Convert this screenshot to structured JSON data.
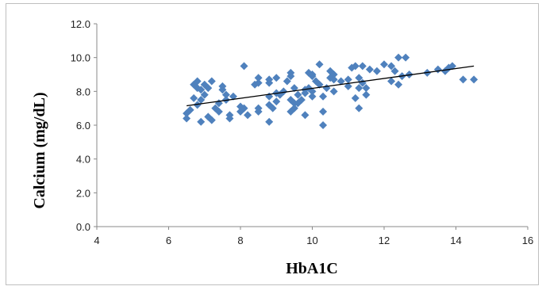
{
  "chart_data": {
    "type": "scatter",
    "title": "",
    "xlabel": "HbA1C",
    "ylabel": "Calcium (mg/dL)",
    "xlim": [
      4,
      16
    ],
    "ylim": [
      0,
      12
    ],
    "x_ticks": [
      "4",
      "6",
      "8",
      "10",
      "12",
      "14",
      "16"
    ],
    "y_ticks": [
      "0.0",
      "2.0",
      "4.0",
      "6.0",
      "8.0",
      "10.0",
      "12.0"
    ],
    "grid": false,
    "legend": "none",
    "marker_color": "#4F81BD",
    "trendline_color": "#000000",
    "trendline": {
      "x": [
        6.5,
        14.5
      ],
      "y": [
        7.15,
        9.5
      ]
    },
    "series": [
      {
        "points": [
          [
            6.5,
            6.4
          ],
          [
            6.5,
            6.7
          ],
          [
            6.6,
            6.9
          ],
          [
            6.7,
            7.6
          ],
          [
            6.7,
            8.4
          ],
          [
            6.8,
            8.6
          ],
          [
            6.8,
            8.2
          ],
          [
            6.8,
            7.2
          ],
          [
            6.9,
            7.5
          ],
          [
            6.9,
            8.1
          ],
          [
            6.9,
            6.2
          ],
          [
            7.0,
            8.4
          ],
          [
            7.0,
            7.8
          ],
          [
            7.1,
            6.5
          ],
          [
            7.1,
            8.2
          ],
          [
            7.2,
            6.3
          ],
          [
            7.2,
            8.6
          ],
          [
            7.3,
            7.0
          ],
          [
            7.4,
            7.3
          ],
          [
            7.4,
            6.8
          ],
          [
            7.5,
            8.1
          ],
          [
            7.5,
            8.3
          ],
          [
            7.6,
            7.5
          ],
          [
            7.6,
            7.8
          ],
          [
            7.7,
            6.6
          ],
          [
            7.7,
            6.4
          ],
          [
            7.8,
            7.7
          ],
          [
            8.0,
            6.8
          ],
          [
            8.0,
            7.1
          ],
          [
            8.1,
            9.5
          ],
          [
            8.1,
            7.0
          ],
          [
            8.2,
            6.6
          ],
          [
            8.4,
            8.4
          ],
          [
            8.5,
            8.5
          ],
          [
            8.5,
            8.8
          ],
          [
            8.5,
            6.8
          ],
          [
            8.5,
            7.0
          ],
          [
            8.8,
            6.2
          ],
          [
            8.8,
            7.2
          ],
          [
            8.8,
            7.7
          ],
          [
            8.8,
            8.5
          ],
          [
            8.8,
            8.7
          ],
          [
            8.9,
            7.0
          ],
          [
            9.0,
            7.4
          ],
          [
            9.0,
            8.8
          ],
          [
            9.0,
            7.9
          ],
          [
            9.1,
            7.8
          ],
          [
            9.2,
            8.0
          ],
          [
            9.3,
            8.6
          ],
          [
            9.4,
            7.5
          ],
          [
            9.4,
            8.9
          ],
          [
            9.4,
            9.1
          ],
          [
            9.4,
            6.8
          ],
          [
            9.5,
            7.0
          ],
          [
            9.5,
            7.3
          ],
          [
            9.5,
            8.2
          ],
          [
            9.6,
            7.3
          ],
          [
            9.6,
            7.8
          ],
          [
            9.7,
            7.5
          ],
          [
            9.8,
            8.1
          ],
          [
            9.8,
            6.6
          ],
          [
            9.8,
            7.9
          ],
          [
            9.9,
            8.2
          ],
          [
            9.9,
            9.1
          ],
          [
            10.0,
            8.0
          ],
          [
            10.0,
            8.9
          ],
          [
            10.0,
            9.0
          ],
          [
            10.0,
            7.7
          ],
          [
            10.1,
            8.6
          ],
          [
            10.2,
            9.6
          ],
          [
            10.2,
            8.4
          ],
          [
            10.3,
            6.0
          ],
          [
            10.3,
            6.8
          ],
          [
            10.3,
            7.7
          ],
          [
            10.4,
            8.2
          ],
          [
            10.5,
            8.8
          ],
          [
            10.5,
            9.2
          ],
          [
            10.6,
            8.0
          ],
          [
            10.6,
            8.7
          ],
          [
            10.6,
            9.0
          ],
          [
            10.8,
            8.6
          ],
          [
            11.0,
            8.3
          ],
          [
            11.0,
            8.7
          ],
          [
            11.1,
            9.4
          ],
          [
            11.2,
            7.6
          ],
          [
            11.2,
            9.5
          ],
          [
            11.3,
            7.0
          ],
          [
            11.3,
            8.2
          ],
          [
            11.3,
            8.8
          ],
          [
            11.4,
            9.5
          ],
          [
            11.4,
            8.5
          ],
          [
            11.5,
            7.8
          ],
          [
            11.5,
            8.2
          ],
          [
            11.6,
            9.3
          ],
          [
            11.8,
            9.2
          ],
          [
            12.0,
            9.6
          ],
          [
            12.2,
            8.6
          ],
          [
            12.2,
            9.5
          ],
          [
            12.3,
            9.2
          ],
          [
            12.4,
            8.4
          ],
          [
            12.4,
            10.0
          ],
          [
            12.5,
            8.9
          ],
          [
            12.6,
            10.0
          ],
          [
            12.7,
            9.0
          ],
          [
            13.2,
            9.1
          ],
          [
            13.5,
            9.3
          ],
          [
            13.7,
            9.2
          ],
          [
            13.8,
            9.4
          ],
          [
            13.9,
            9.5
          ],
          [
            14.2,
            8.7
          ],
          [
            14.5,
            8.7
          ]
        ]
      }
    ]
  }
}
